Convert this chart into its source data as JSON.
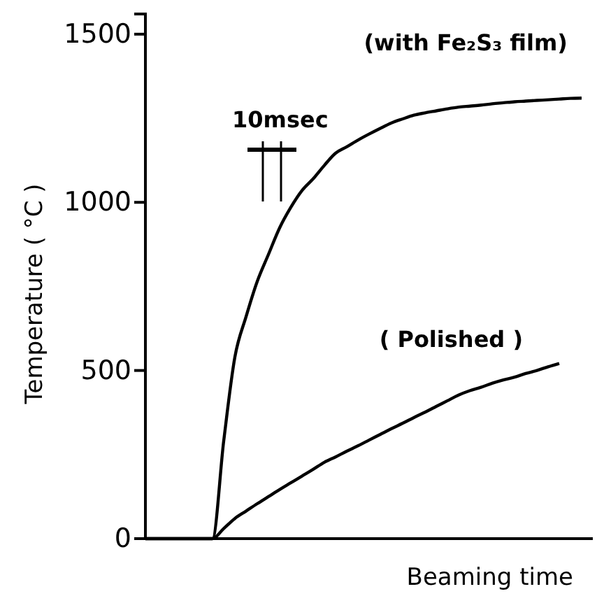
{
  "chart_data": {
    "type": "line",
    "xlabel": "Beaming time",
    "ylabel": "Temperature  ( °C )",
    "categories": [
      null,
      null,
      null,
      null,
      null,
      null,
      null,
      null,
      null,
      null,
      null,
      null,
      null,
      null,
      null,
      null,
      null,
      null,
      null,
      null,
      null,
      null,
      null,
      null,
      null,
      null,
      null,
      null,
      null,
      null,
      null,
      null,
      null,
      null,
      null,
      null,
      null,
      null,
      null,
      null,
      null
    ],
    "series": [
      {
        "name": "(with Fe₂S₃ film)",
        "color": "#000000",
        "values": [
          0,
          0,
          0,
          0,
          0,
          0,
          0,
          290,
          540,
          660,
          765,
          845,
          924,
          985,
          1035,
          1070,
          1110,
          1146,
          1165,
          1185,
          1203,
          1220,
          1236,
          1248,
          1259,
          1266,
          1272,
          1278,
          1283,
          1286,
          1289,
          1293,
          1296,
          1299,
          1301,
          1303,
          1305,
          1307,
          1309,
          1310,
          null
        ]
      },
      {
        "name": "( Polished )",
        "color": "#000000",
        "values": [
          0,
          0,
          0,
          0,
          0,
          0,
          0,
          30,
          60,
          82,
          104,
          125,
          146,
          166,
          186,
          206,
          227,
          243,
          260,
          276,
          293,
          310,
          327,
          343,
          360,
          376,
          393,
          410,
          427,
          440,
          450,
          462,
          472,
          480,
          491,
          500,
          511,
          521,
          null,
          null,
          null
        ]
      }
    ],
    "ylim": [
      0,
      1560
    ],
    "yticks": [
      0,
      500,
      1000,
      1500
    ],
    "tick_labels": "y",
    "annotations": [
      "10msec"
    ]
  }
}
